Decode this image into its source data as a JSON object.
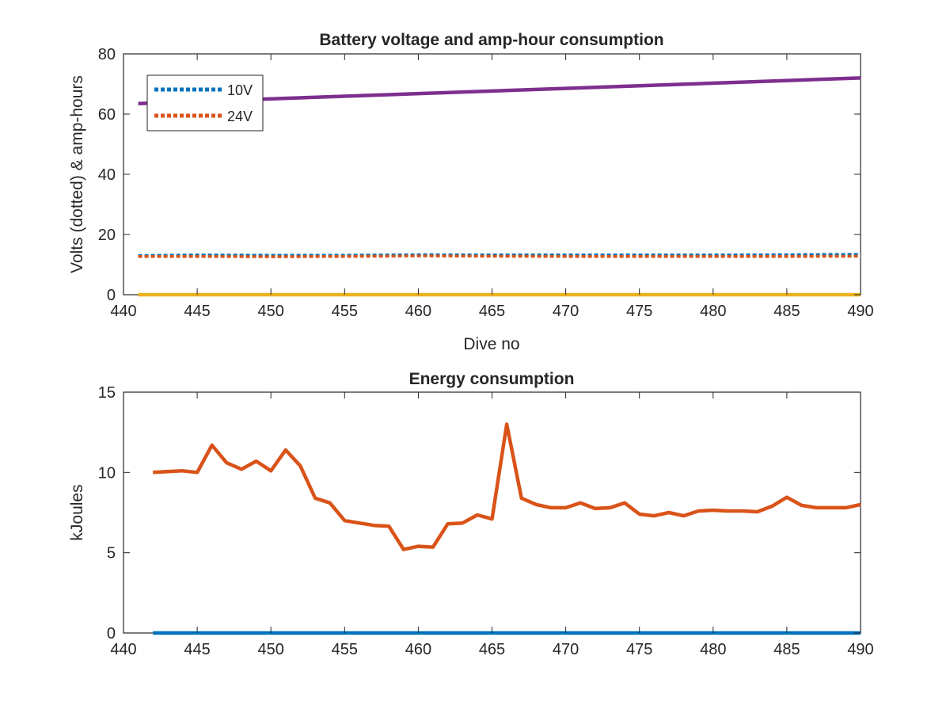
{
  "chart_data": [
    {
      "type": "line",
      "title": "Battery voltage and amp-hour consumption",
      "xlabel": "Dive no",
      "ylabel": "Volts (dotted) & amp-hours",
      "xlim": [
        440,
        490
      ],
      "ylim": [
        0,
        80
      ],
      "xticks": [
        440,
        445,
        450,
        455,
        460,
        465,
        470,
        475,
        480,
        485,
        490
      ],
      "yticks": [
        0,
        20,
        40,
        60,
        80
      ],
      "legend_placement": "top-left",
      "grid": false,
      "series": [
        {
          "name": "10V",
          "style": "dotted",
          "color": "#0072BD",
          "x": [
            441,
            445,
            450,
            455,
            460,
            465,
            470,
            475,
            480,
            485,
            490
          ],
          "y": [
            13.0,
            13.2,
            13.1,
            13.1,
            13.3,
            13.2,
            13.2,
            13.2,
            13.2,
            13.3,
            13.4
          ]
        },
        {
          "name": "24V",
          "style": "dotted",
          "color": "#D95319",
          "x": [
            441,
            445,
            450,
            455,
            460,
            465,
            470,
            475,
            480,
            485,
            490
          ],
          "y": [
            12.7,
            12.7,
            12.6,
            12.7,
            12.9,
            12.8,
            12.7,
            12.7,
            12.7,
            12.7,
            12.8
          ]
        },
        {
          "style": "solid",
          "color": "#7E2F8E",
          "x": [
            441,
            490
          ],
          "y": [
            63.5,
            72.0
          ]
        },
        {
          "style": "solid",
          "color": "#EDB120",
          "x": [
            441,
            490
          ],
          "y": [
            0,
            0
          ]
        }
      ]
    },
    {
      "type": "line",
      "title": "Energy consumption",
      "xlabel": "",
      "ylabel": "kJoules",
      "xlim": [
        440,
        490
      ],
      "ylim": [
        0,
        15
      ],
      "xticks": [
        440,
        445,
        450,
        455,
        460,
        465,
        470,
        475,
        480,
        485,
        490
      ],
      "yticks": [
        0,
        5,
        10,
        15
      ],
      "grid": false,
      "series": [
        {
          "style": "solid",
          "color": "#D95319",
          "x": [
            442,
            443,
            444,
            445,
            446,
            447,
            448,
            449,
            450,
            451,
            452,
            453,
            454,
            455,
            456,
            457,
            458,
            459,
            460,
            461,
            462,
            463,
            464,
            465,
            466,
            467,
            468,
            469,
            470,
            471,
            472,
            473,
            474,
            475,
            476,
            477,
            478,
            479,
            480,
            481,
            482,
            483,
            484,
            485,
            486,
            487,
            488,
            489,
            490
          ],
          "y": [
            10.0,
            10.05,
            10.1,
            10.0,
            11.7,
            10.6,
            10.2,
            10.7,
            10.1,
            11.4,
            10.4,
            8.4,
            8.1,
            7.0,
            6.85,
            6.7,
            6.65,
            5.2,
            5.4,
            5.35,
            6.8,
            6.85,
            7.35,
            7.1,
            13.0,
            8.4,
            8.0,
            7.8,
            7.8,
            8.1,
            7.75,
            7.8,
            8.1,
            7.4,
            7.3,
            7.5,
            7.3,
            7.6,
            7.65,
            7.6,
            7.6,
            7.55,
            7.9,
            8.45,
            7.95,
            7.8,
            7.8,
            7.8,
            8.0
          ]
        },
        {
          "style": "solid",
          "color": "#0072BD",
          "x": [
            442,
            490
          ],
          "y": [
            0,
            0
          ]
        }
      ]
    }
  ]
}
